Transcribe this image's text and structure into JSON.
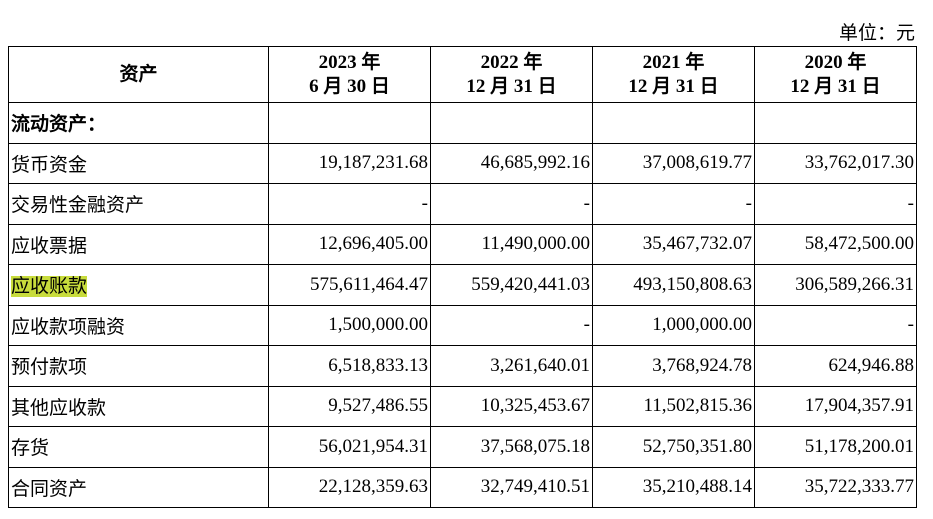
{
  "unit": "单位：元",
  "header": {
    "first": "资产",
    "periods": [
      [
        "2023 年",
        "6 月 30 日"
      ],
      [
        "2022 年",
        "12 月 31 日"
      ],
      [
        "2021 年",
        "12 月 31 日"
      ],
      [
        "2020 年",
        "12 月 31 日"
      ]
    ]
  },
  "rows": [
    {
      "label": "流动资产：",
      "section": true
    },
    {
      "label": "货币资金",
      "values": [
        "19,187,231.68",
        "46,685,992.16",
        "37,008,619.77",
        "33,762,017.30"
      ]
    },
    {
      "label": "交易性金融资产",
      "values": [
        "-",
        "-",
        "-",
        "-"
      ]
    },
    {
      "label": "应收票据",
      "values": [
        "12,696,405.00",
        "11,490,000.00",
        "35,467,732.07",
        "58,472,500.00"
      ]
    },
    {
      "label": "应收账款",
      "highlighted": true,
      "values": [
        "575,611,464.47",
        "559,420,441.03",
        "493,150,808.63",
        "306,589,266.31"
      ]
    },
    {
      "label": "应收款项融资",
      "values": [
        "1,500,000.00",
        "-",
        "1,000,000.00",
        "-"
      ]
    },
    {
      "label": "预付款项",
      "values": [
        "6,518,833.13",
        "3,261,640.01",
        "3,768,924.78",
        "624,946.88"
      ]
    },
    {
      "label": "其他应收款",
      "values": [
        "9,527,486.55",
        "10,325,453.67",
        "11,502,815.36",
        "17,904,357.91"
      ]
    },
    {
      "label": "存货",
      "values": [
        "56,021,954.31",
        "37,568,075.18",
        "52,750,351.80",
        "51,178,200.01"
      ]
    },
    {
      "label": "合同资产",
      "values": [
        "22,128,359.63",
        "32,749,410.51",
        "35,210,488.14",
        "35,722,333.77"
      ]
    }
  ]
}
